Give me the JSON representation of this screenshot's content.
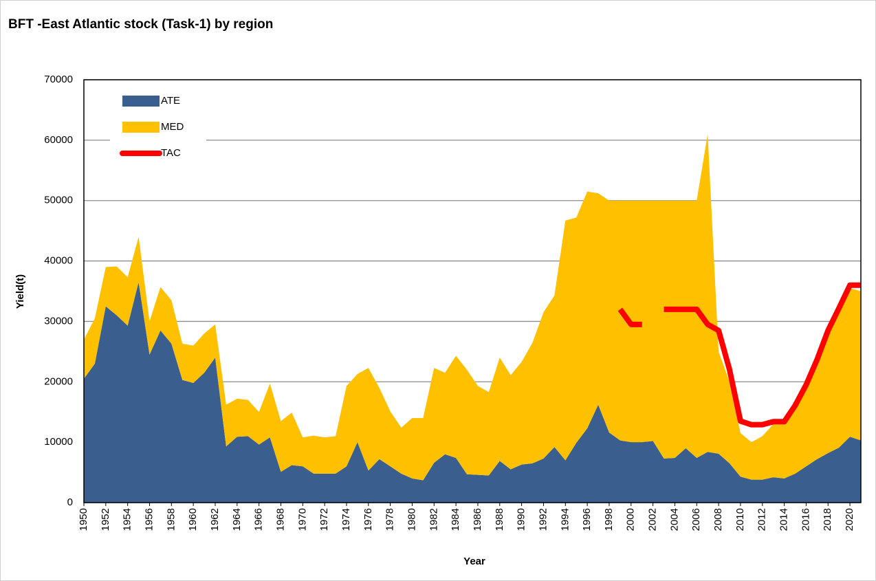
{
  "chart_data": {
    "type": "stacked-area",
    "title": "BFT -East Atlantic stock  (Task-1)  by region",
    "x_label": "Year",
    "y_label": "Yield(t)",
    "x": [
      1950,
      1951,
      1952,
      1953,
      1954,
      1955,
      1956,
      1957,
      1958,
      1959,
      1960,
      1961,
      1962,
      1963,
      1964,
      1965,
      1966,
      1967,
      1968,
      1969,
      1970,
      1971,
      1972,
      1973,
      1974,
      1975,
      1976,
      1977,
      1978,
      1979,
      1980,
      1981,
      1982,
      1983,
      1984,
      1985,
      1986,
      1987,
      1988,
      1989,
      1990,
      1991,
      1992,
      1993,
      1994,
      1995,
      1996,
      1997,
      1998,
      1999,
      2000,
      2001,
      2002,
      2003,
      2004,
      2005,
      2006,
      2007,
      2008,
      2009,
      2010,
      2011,
      2012,
      2013,
      2014,
      2015,
      2016,
      2017,
      2018,
      2019,
      2020,
      2021
    ],
    "xlim": [
      1950,
      2021
    ],
    "xticks": [
      1950,
      1952,
      1954,
      1956,
      1958,
      1960,
      1962,
      1964,
      1966,
      1968,
      1970,
      1972,
      1974,
      1976,
      1978,
      1980,
      1982,
      1984,
      1986,
      1988,
      1990,
      1992,
      1994,
      1996,
      1998,
      2000,
      2002,
      2004,
      2006,
      2008,
      2010,
      2012,
      2014,
      2016,
      2018,
      2020
    ],
    "ylim": [
      0,
      70000
    ],
    "yticks": [
      0,
      10000,
      20000,
      30000,
      40000,
      50000,
      60000,
      70000
    ],
    "grid": true,
    "legend": "upper-left",
    "series": [
      {
        "name": "ATE",
        "color": "#3a5f8f",
        "values": [
          20500,
          23000,
          32500,
          31000,
          29300,
          36500,
          24500,
          28500,
          26300,
          20300,
          19800,
          21500,
          24000,
          9300,
          10900,
          11000,
          9600,
          10800,
          5100,
          6200,
          6000,
          4800,
          4800,
          4800,
          6000,
          10000,
          5300,
          7200,
          6000,
          4800,
          4000,
          3700,
          6600,
          8000,
          7400,
          4700,
          4600,
          4500,
          6900,
          5500,
          6300,
          6500,
          7300,
          9200,
          7000,
          9900,
          12300,
          16200,
          11600,
          10300,
          10000,
          10000,
          10200,
          7300,
          7400,
          9000,
          7400,
          8400,
          8100,
          6500,
          4300,
          3800,
          3800,
          4200,
          4000,
          4800,
          6000,
          7200,
          8200,
          9100,
          10900,
          10300
        ]
      },
      {
        "name": "MED",
        "color": "#ffc000",
        "values": [
          6500,
          7500,
          6500,
          8100,
          8000,
          7500,
          5500,
          7200,
          7200,
          6000,
          6200,
          6500,
          5500,
          6900,
          6300,
          6000,
          5400,
          8900,
          8400,
          8700,
          4800,
          6300,
          6000,
          6200,
          13300,
          11300,
          17000,
          11800,
          9100,
          7600,
          10000,
          10300,
          15700,
          13500,
          16900,
          17300,
          14700,
          13800,
          17100,
          15600,
          17000,
          20000,
          24200,
          25100,
          39700,
          37300,
          39200,
          35000,
          38400,
          39700,
          40000,
          40000,
          39800,
          42700,
          42600,
          41000,
          42600,
          52600,
          16900,
          13500,
          7200,
          6200,
          7200,
          8800,
          9500,
          12200,
          14500,
          16800,
          20300,
          22400,
          24600,
          24700
        ]
      },
      {
        "name": "TAC",
        "type": "line",
        "color": "#ff0000",
        "values": [
          null,
          null,
          null,
          null,
          null,
          null,
          null,
          null,
          null,
          null,
          null,
          null,
          null,
          null,
          null,
          null,
          null,
          null,
          null,
          null,
          null,
          null,
          null,
          null,
          null,
          null,
          null,
          null,
          null,
          null,
          null,
          null,
          null,
          null,
          null,
          null,
          null,
          null,
          null,
          null,
          null,
          null,
          null,
          null,
          null,
          null,
          null,
          null,
          null,
          32000,
          29500,
          29500,
          null,
          32000,
          32000,
          32000,
          32000,
          29500,
          28500,
          22000,
          13500,
          12900,
          12900,
          13400,
          13400,
          16100,
          19500,
          23700,
          28500,
          32200,
          36000,
          36000
        ]
      }
    ]
  }
}
